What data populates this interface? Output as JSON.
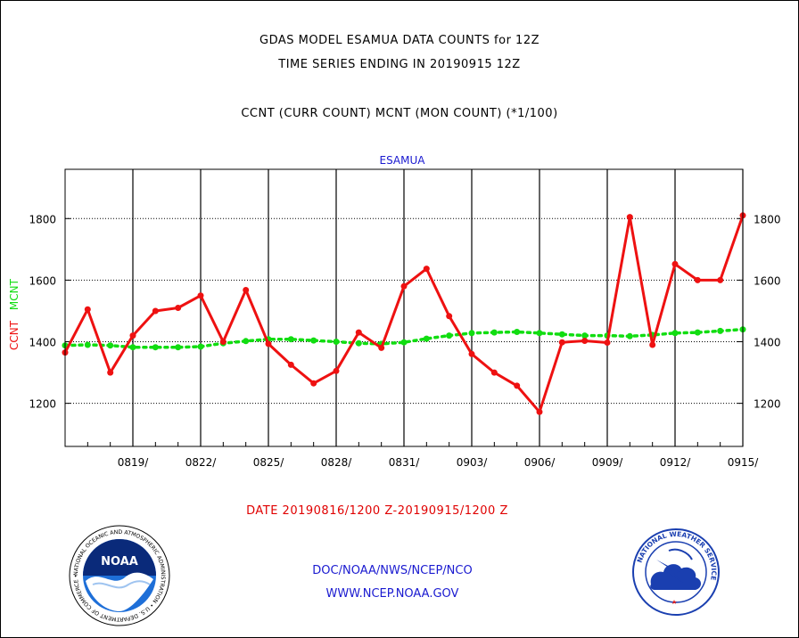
{
  "titles": {
    "line1": "GDAS MODEL ESAMUA DATA COUNTS for 12Z",
    "line2": "TIME SERIES ENDING IN 20190915 12Z",
    "line3": "CCNT (CURR COUNT) MCNT (MON COUNT) (*1/100)"
  },
  "footer": {
    "date_range": "DATE 20190816/1200 Z-20190915/1200 Z",
    "credit1": "DOC/NOAA/NWS/NCEP/NCO",
    "credit2": "WWW.NCEP.NOAA.GOV"
  },
  "logos": {
    "noaa_text": "NOAA",
    "noaa_ring": "NATIONAL OCEANIC AND ATMOSPHERIC ADMINISTRATION • U.S. DEPARTMENT OF COMMERCE •",
    "nws_ring": "NATIONAL WEATHER SERVICE"
  },
  "chart_data": {
    "type": "line",
    "title": "ESAMUA",
    "xlabel": "",
    "ylabel": "CCNT  MCNT",
    "ylabel_parts": [
      "CCNT",
      "MCNT"
    ],
    "ylim": [
      1060,
      1960
    ],
    "yticks": [
      1200,
      1400,
      1600,
      1800
    ],
    "xlim": [
      0,
      30
    ],
    "xtick_positions": [
      3,
      6,
      9,
      12,
      15,
      18,
      21,
      24,
      27,
      30
    ],
    "xtick_labels": [
      "0819/",
      "0822/",
      "0825/",
      "0828/",
      "0831/",
      "0903/",
      "0906/",
      "0909/",
      "0912/",
      "0915/"
    ],
    "x_dates": [
      "0816",
      "0817",
      "0818",
      "0819",
      "0820",
      "0821",
      "0822",
      "0823",
      "0824",
      "0825",
      "0826",
      "0827",
      "0828",
      "0829",
      "0830",
      "0831",
      "0901",
      "0902",
      "0903",
      "0904",
      "0905",
      "0906",
      "0907",
      "0908",
      "0909",
      "0910",
      "0911",
      "0912",
      "0913",
      "0914",
      "0915"
    ],
    "grid": true,
    "colors": {
      "ccnt": "#ee1111",
      "mcnt": "#11dd11",
      "title": "#1a1ad0",
      "ylabel_ccnt": "#ee1111",
      "ylabel_mcnt": "#11dd11"
    },
    "series": [
      {
        "name": "CCNT",
        "values": [
          1365,
          1505,
          1300,
          1420,
          1500,
          1510,
          1550,
          1400,
          1568,
          1393,
          1325,
          1265,
          1305,
          1430,
          1380,
          1580,
          1637,
          1483,
          1360,
          1300,
          1257,
          1172,
          1398,
          1403,
          1397,
          1805,
          1390,
          1652,
          1600,
          1600,
          1810
        ]
      },
      {
        "name": "MCNT",
        "values": [
          1388,
          1390,
          1388,
          1382,
          1382,
          1382,
          1384,
          1395,
          1402,
          1408,
          1408,
          1404,
          1400,
          1395,
          1393,
          1398,
          1410,
          1420,
          1428,
          1430,
          1432,
          1428,
          1424,
          1420,
          1420,
          1418,
          1422,
          1428,
          1430,
          1435,
          1440
        ]
      }
    ]
  }
}
